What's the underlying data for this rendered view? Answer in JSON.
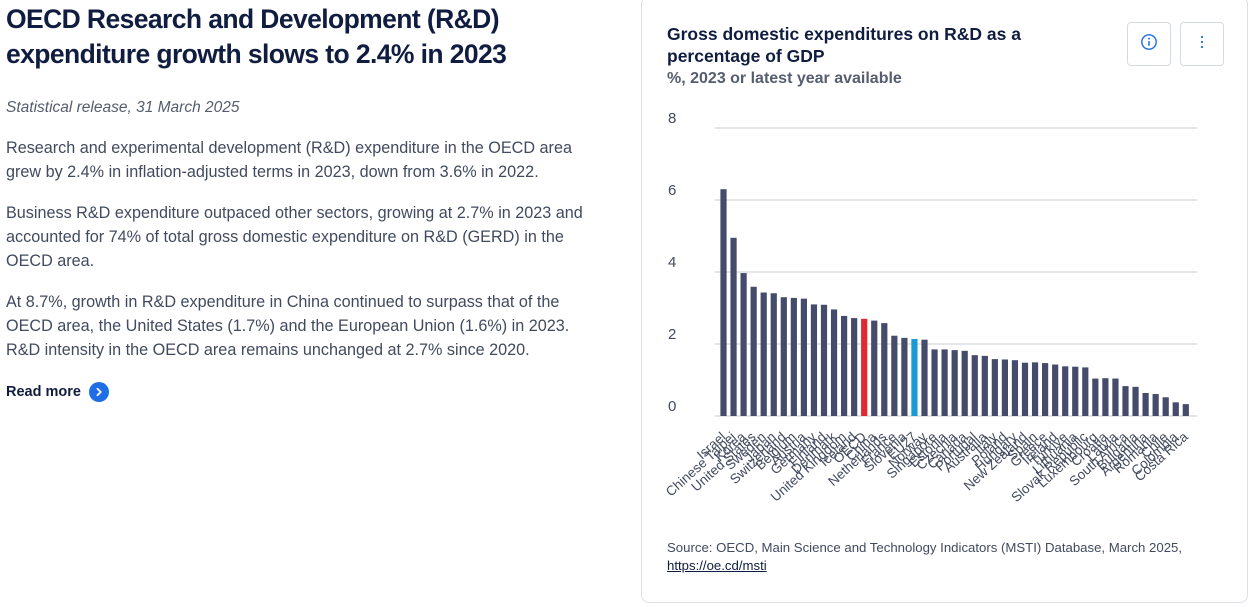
{
  "article": {
    "title": "OECD Research and Development (R&D) expenditure growth slows to 2.4% in 2023",
    "release": "Statistical release, 31 March 2025",
    "paragraphs": [
      "Research and experimental development (R&D) expenditure in the OECD area grew by 2.4% in inflation-adjusted terms in 2023, down from 3.6% in 2022.",
      "Business R&D expenditure outpaced other sectors, growing at 2.7% in 2023 and accounted for 74% of total gross domestic expenditure on R&D (GERD) in the OECD area.",
      "At 8.7%, growth in R&D expenditure in China continued to surpass that of the OECD area, the United States (1.7%) and the European Union (1.6%) in 2023. R&D intensity in the OECD area remains unchanged at 2.7% since 2020."
    ],
    "read_more": "Read more",
    "read_more_icon": "chevron-right-icon"
  },
  "card": {
    "info_icon": "info-icon",
    "more_icon": "vertical-ellipsis-icon",
    "source_text": "Source: OECD, Main Science and Technology Indicators (MSTI) Database, March 2025, ",
    "source_link": "https://oe.cd/msti"
  },
  "chart_data": {
    "type": "bar",
    "title": "Gross domestic expenditures on R&D as a percentage of GDP",
    "subtitle": "%, 2023 or latest year available",
    "xlabel": "",
    "ylabel": "",
    "ylim": [
      0,
      8
    ],
    "yticks": [
      0,
      2,
      4,
      6,
      8
    ],
    "grid": true,
    "colors": {
      "default": "#454b6a",
      "OECD": "#e02a2f",
      "EU27": "#1b9ad6",
      "grid": "#c9ccd3"
    },
    "categories": [
      "Israel",
      "Chinese Taipei",
      "Korea",
      "United States",
      "Sweden",
      "Japan",
      "Switzerland",
      "Belgium",
      "Austria",
      "Germany",
      "Finland",
      "Denmark",
      "United Kingdom",
      "Iceland",
      "OECD",
      "China",
      "Netherlands",
      "France",
      "Slovenia",
      "EU27",
      "Norway",
      "Singapore",
      "Estonia",
      "Czechia",
      "Canada",
      "Portugal",
      "Australia",
      "Italy",
      "Poland",
      "Hungary",
      "New Zealand",
      "Spain",
      "Greece",
      "Ireland",
      "Turkiye",
      "Lithuania",
      "Slovak Republic",
      "Luxembourg",
      "Croatia",
      "Latvia",
      "South Africa",
      "Bulgaria",
      "Argentina",
      "Romania",
      "Chile",
      "Colombia",
      "Costa Rica"
    ],
    "values": [
      6.3,
      4.95,
      3.97,
      3.59,
      3.43,
      3.41,
      3.3,
      3.28,
      3.26,
      3.1,
      3.09,
      2.96,
      2.78,
      2.72,
      2.7,
      2.65,
      2.58,
      2.23,
      2.17,
      2.14,
      2.12,
      1.85,
      1.85,
      1.83,
      1.81,
      1.69,
      1.67,
      1.58,
      1.57,
      1.55,
      1.48,
      1.49,
      1.47,
      1.43,
      1.38,
      1.37,
      1.35,
      1.04,
      1.05,
      1.04,
      0.83,
      0.81,
      0.64,
      0.61,
      0.52,
      0.38,
      0.33
    ]
  }
}
